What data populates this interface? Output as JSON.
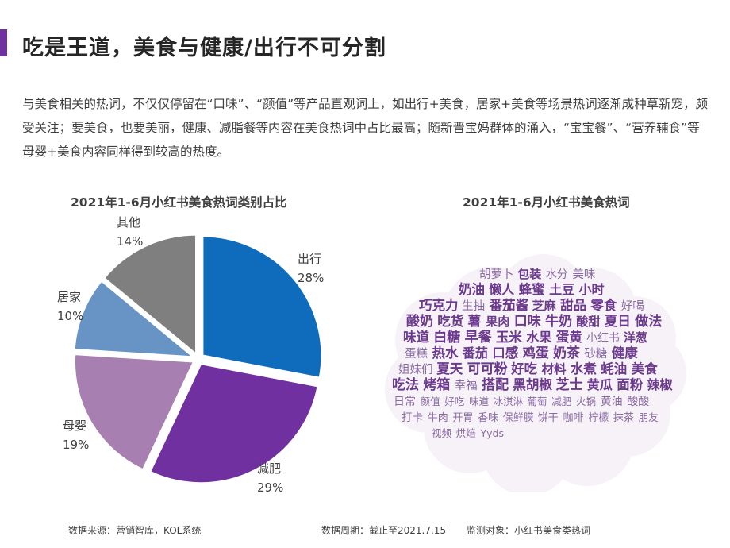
{
  "page": {
    "title": "吃是王道，美食与健康/出行不可分割",
    "intro": "与美食相关的热词，不仅仅停留在“口味”、“颜值”等产品直观词上，如出行+美食，居家+美食等场景热词逐渐成种草新宠，颇受关注；要美食，也要美丽，健康、减脂餐等内容在美食热词中占比最高；随新晋宝妈群体的涌入，“宝宝餐”、“营养辅食”等母婴+美食内容同样得到较高的热度。"
  },
  "chart_data": [
    {
      "type": "pie",
      "title": "2021年1-6月小红书美食热词类别占比",
      "slices": [
        {
          "label": "出行",
          "value": 28,
          "display": "28%",
          "color": "#0f6cbd"
        },
        {
          "label": "减肥",
          "value": 29,
          "display": "29%",
          "color": "#7030a0"
        },
        {
          "label": "母婴",
          "value": 19,
          "display": "19%",
          "color": "#a77fb0"
        },
        {
          "label": "居家",
          "value": 10,
          "display": "10%",
          "color": "#6794c4"
        },
        {
          "label": "其他",
          "value": 14,
          "display": "14%",
          "color": "#7f7f7f"
        }
      ]
    },
    {
      "type": "wordcloud",
      "title": "2021年1-6月小红书美食热词",
      "color": "#6b3a8c",
      "words": [
        {
          "text": "胡萝卜",
          "weight": 0.55
        },
        {
          "text": "包装",
          "weight": 0.6
        },
        {
          "text": "水分",
          "weight": 0.5
        },
        {
          "text": "美味",
          "weight": 0.55
        },
        {
          "text": "奶油",
          "weight": 0.75
        },
        {
          "text": "懒人",
          "weight": 0.7
        },
        {
          "text": "蜂蜜",
          "weight": 0.75
        },
        {
          "text": "土豆",
          "weight": 0.7
        },
        {
          "text": "小时",
          "weight": 0.7
        },
        {
          "text": "巧克力",
          "weight": 0.75
        },
        {
          "text": "生抽",
          "weight": 0.55
        },
        {
          "text": "番茄酱",
          "weight": 0.75
        },
        {
          "text": "芝麻",
          "weight": 0.6
        },
        {
          "text": "甜品",
          "weight": 0.75
        },
        {
          "text": "零食",
          "weight": 0.75
        },
        {
          "text": "好喝",
          "weight": 0.55
        },
        {
          "text": "酸奶",
          "weight": 0.8
        },
        {
          "text": "吃货",
          "weight": 0.75
        },
        {
          "text": "薯",
          "weight": 0.75
        },
        {
          "text": "果肉",
          "weight": 0.6
        },
        {
          "text": "口味",
          "weight": 0.8
        },
        {
          "text": "牛奶",
          "weight": 0.8
        },
        {
          "text": "酸甜",
          "weight": 0.6
        },
        {
          "text": "夏日",
          "weight": 0.75
        },
        {
          "text": "做法",
          "weight": 0.8
        },
        {
          "text": "味道",
          "weight": 0.75
        },
        {
          "text": "白糖",
          "weight": 0.8
        },
        {
          "text": "早餐",
          "weight": 0.8
        },
        {
          "text": "玉米",
          "weight": 0.75
        },
        {
          "text": "水果",
          "weight": 0.7
        },
        {
          "text": "蛋黄",
          "weight": 0.75
        },
        {
          "text": "小红书",
          "weight": 0.5
        },
        {
          "text": "洋葱",
          "weight": 0.6
        },
        {
          "text": "蛋糕",
          "weight": 0.55
        },
        {
          "text": "热水",
          "weight": 0.75
        },
        {
          "text": "番茄",
          "weight": 0.7
        },
        {
          "text": "口感",
          "weight": 0.75
        },
        {
          "text": "鸡蛋",
          "weight": 0.75
        },
        {
          "text": "奶茶",
          "weight": 0.8
        },
        {
          "text": "砂糖",
          "weight": 0.55
        },
        {
          "text": "健康",
          "weight": 0.75
        },
        {
          "text": "姐妹们",
          "weight": 0.55
        },
        {
          "text": "夏天",
          "weight": 0.75
        },
        {
          "text": "可可粉",
          "weight": 0.8
        },
        {
          "text": "好吃",
          "weight": 0.75
        },
        {
          "text": "材料",
          "weight": 0.65
        },
        {
          "text": "水煮",
          "weight": 0.75
        },
        {
          "text": "蚝油",
          "weight": 0.75
        },
        {
          "text": "美食",
          "weight": 0.75
        },
        {
          "text": "吃法",
          "weight": 0.8
        },
        {
          "text": "烤箱",
          "weight": 0.8
        },
        {
          "text": "幸福",
          "weight": 0.55
        },
        {
          "text": "搭配",
          "weight": 0.8
        },
        {
          "text": "黑胡椒",
          "weight": 0.75
        },
        {
          "text": "芝士",
          "weight": 0.8
        },
        {
          "text": "黄瓜",
          "weight": 0.7
        },
        {
          "text": "面粉",
          "weight": 0.75
        },
        {
          "text": "辣椒",
          "weight": 0.7
        },
        {
          "text": "日常",
          "weight": 0.5
        },
        {
          "text": "颜值",
          "weight": 0.35
        },
        {
          "text": "好吃",
          "weight": 0.35
        },
        {
          "text": "味道",
          "weight": 0.35
        },
        {
          "text": "冰淇淋",
          "weight": 0.35
        },
        {
          "text": "葡萄",
          "weight": 0.35
        },
        {
          "text": "减肥",
          "weight": 0.35
        },
        {
          "text": "火锅",
          "weight": 0.35
        },
        {
          "text": "黄油",
          "weight": 0.5
        },
        {
          "text": "酸酸",
          "weight": 0.5
        },
        {
          "text": "打卡",
          "weight": 0.45
        },
        {
          "text": "牛肉",
          "weight": 0.4
        },
        {
          "text": "开胃",
          "weight": 0.4
        },
        {
          "text": "香味",
          "weight": 0.4
        },
        {
          "text": "保鲜膜",
          "weight": 0.4
        },
        {
          "text": "饼干",
          "weight": 0.4
        },
        {
          "text": "咖啡",
          "weight": 0.4
        },
        {
          "text": "柠檬",
          "weight": 0.4
        },
        {
          "text": "抹茶",
          "weight": 0.4
        },
        {
          "text": "朋友",
          "weight": 0.35
        },
        {
          "text": "视频",
          "weight": 0.35
        },
        {
          "text": "烘焙",
          "weight": 0.35
        },
        {
          "text": "Yyds",
          "weight": 0.35
        }
      ]
    }
  ],
  "footer": {
    "source": "数据来源：营销智库，KOL系统",
    "period": "数据周期：截止至2021.7.15",
    "target": "监测对象：小红书美食类热词"
  }
}
